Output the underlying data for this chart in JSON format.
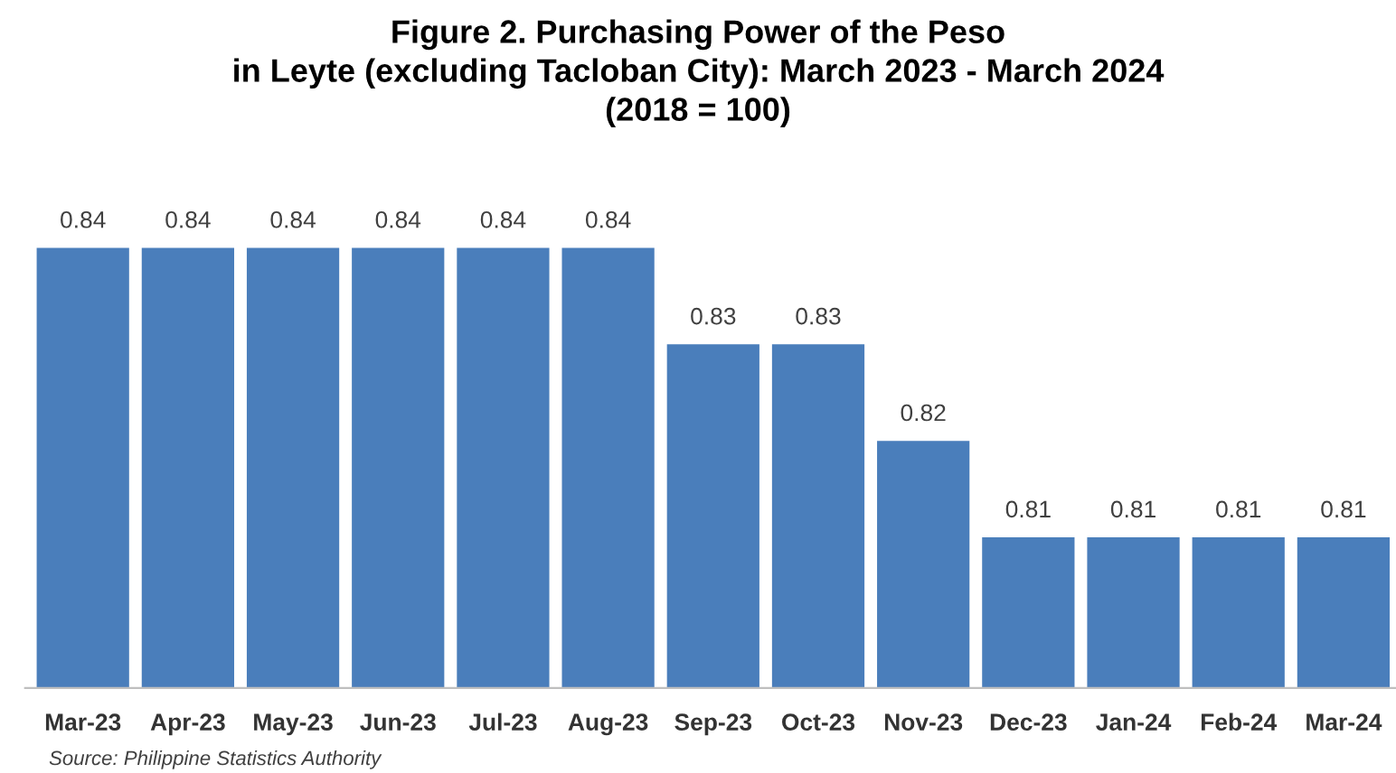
{
  "chart_data": {
    "type": "bar",
    "title": "Figure 2. Purchasing Power of the Peso\nin Leyte (excluding Tacloban City): March 2023 - March 2024\n(2018 = 100)",
    "categories": [
      "Mar-23",
      "Apr-23",
      "May-23",
      "Jun-23",
      "Jul-23",
      "Aug-23",
      "Sep-23",
      "Oct-23",
      "Nov-23",
      "Dec-23",
      "Jan-24",
      "Feb-24",
      "Mar-24"
    ],
    "values": [
      0.84,
      0.84,
      0.84,
      0.84,
      0.84,
      0.84,
      0.83,
      0.83,
      0.82,
      0.81,
      0.81,
      0.81,
      0.81
    ],
    "color": "#4a7ebb",
    "tick_labels": "x",
    "data_labels": true,
    "legend": false,
    "annotations": [
      "Source: Philippine Statistics Authority"
    ]
  }
}
